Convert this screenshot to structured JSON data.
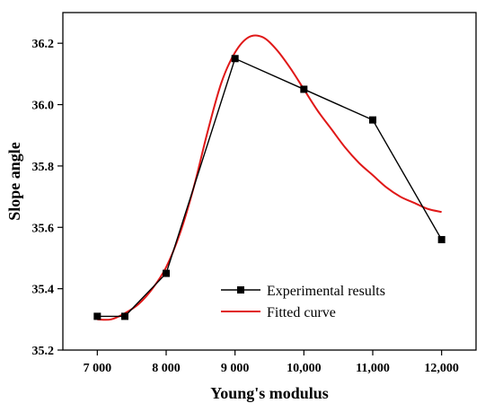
{
  "chart_data": {
    "type": "line",
    "xlabel": "Young's modulus",
    "ylabel": "Slope angle",
    "xlim": [
      6500,
      12500
    ],
    "ylim": [
      35.2,
      36.3
    ],
    "x_ticks": [
      {
        "value": 7000,
        "label": "7 000"
      },
      {
        "value": 8000,
        "label": "8 000"
      },
      {
        "value": 9000,
        "label": "9 000"
      },
      {
        "value": 10000,
        "label": "10,000"
      },
      {
        "value": 11000,
        "label": "11,000"
      },
      {
        "value": 12000,
        "label": "12,000"
      }
    ],
    "y_ticks": [
      {
        "value": 35.2,
        "label": "35.2"
      },
      {
        "value": 35.4,
        "label": "35.4"
      },
      {
        "value": 35.6,
        "label": "35.6"
      },
      {
        "value": 35.8,
        "label": "35.8"
      },
      {
        "value": 36.0,
        "label": "36.0"
      },
      {
        "value": 36.2,
        "label": "36.2"
      }
    ],
    "legend_position": "bottom-center",
    "grid": false,
    "series": [
      {
        "name": "Experimental results",
        "style": "line-square-markers",
        "color": "#000000",
        "x": [
          7000,
          7400,
          8000,
          9000,
          10000,
          11000,
          12000
        ],
        "y": [
          35.31,
          35.31,
          35.45,
          36.15,
          36.05,
          35.95,
          35.56
        ]
      },
      {
        "name": "Fitted curve",
        "style": "smooth-line",
        "color": "#e01818",
        "x": [
          7000,
          7200,
          7400,
          7600,
          7800,
          8000,
          8200,
          8400,
          8600,
          8800,
          9000,
          9200,
          9400,
          9600,
          9800,
          10000,
          10200,
          10400,
          10600,
          10800,
          11000,
          11200,
          11400,
          11600,
          11800,
          12000
        ],
        "y": [
          35.3,
          35.3,
          35.32,
          35.35,
          35.4,
          35.47,
          35.58,
          35.73,
          35.91,
          36.07,
          36.17,
          36.22,
          36.22,
          36.18,
          36.12,
          36.05,
          35.98,
          35.92,
          35.86,
          35.81,
          35.77,
          35.73,
          35.7,
          35.68,
          35.66,
          35.65
        ]
      }
    ]
  }
}
